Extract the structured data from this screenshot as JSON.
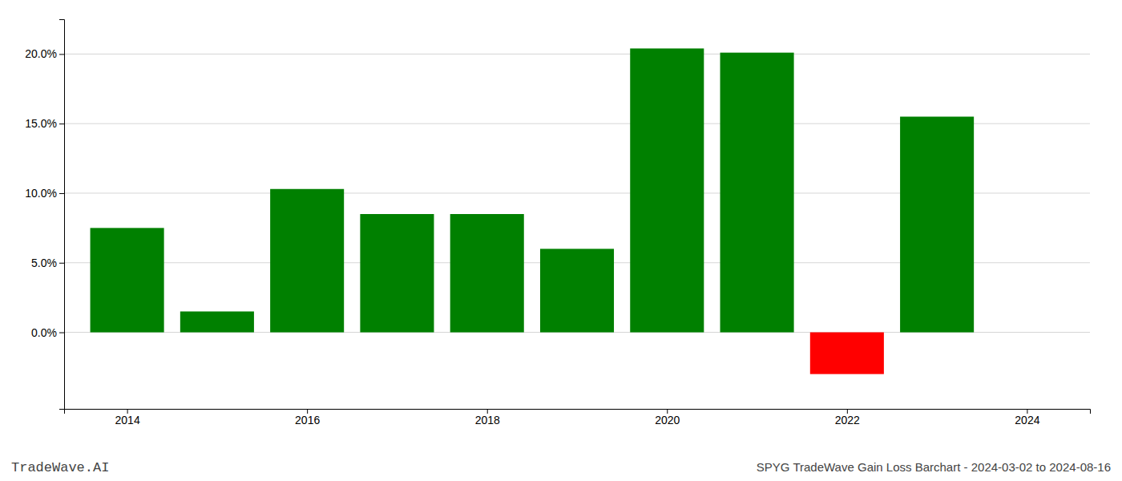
{
  "chart_data": {
    "type": "bar",
    "title": "SPYG TradeWave Gain Loss Barchart - 2024-03-02 to 2024-08-16",
    "annotations": [
      "TradeWave.AI"
    ],
    "x": [
      2014,
      2015,
      2016,
      2017,
      2018,
      2019,
      2020,
      2021,
      2022,
      2023
    ],
    "values": [
      0.075,
      0.015,
      0.103,
      0.085,
      0.085,
      0.06,
      0.204,
      0.201,
      -0.03,
      0.155
    ],
    "colors": [
      "#008000",
      "#008000",
      "#008000",
      "#008000",
      "#008000",
      "#008000",
      "#008000",
      "#008000",
      "#ff0000",
      "#008000"
    ],
    "xlim": [
      2013.3,
      2024.7
    ],
    "xticks": [
      2014,
      2016,
      2018,
      2020,
      2022,
      2024
    ],
    "ylim": [
      -0.055,
      0.225
    ],
    "yticks": [
      {
        "value": 0.0,
        "label": "0.0%"
      },
      {
        "value": 0.05,
        "label": "5.0%"
      },
      {
        "value": 0.1,
        "label": "10.0%"
      },
      {
        "value": 0.15,
        "label": "15.0%"
      },
      {
        "value": 0.2,
        "label": "20.0%"
      }
    ],
    "grid": "y"
  }
}
